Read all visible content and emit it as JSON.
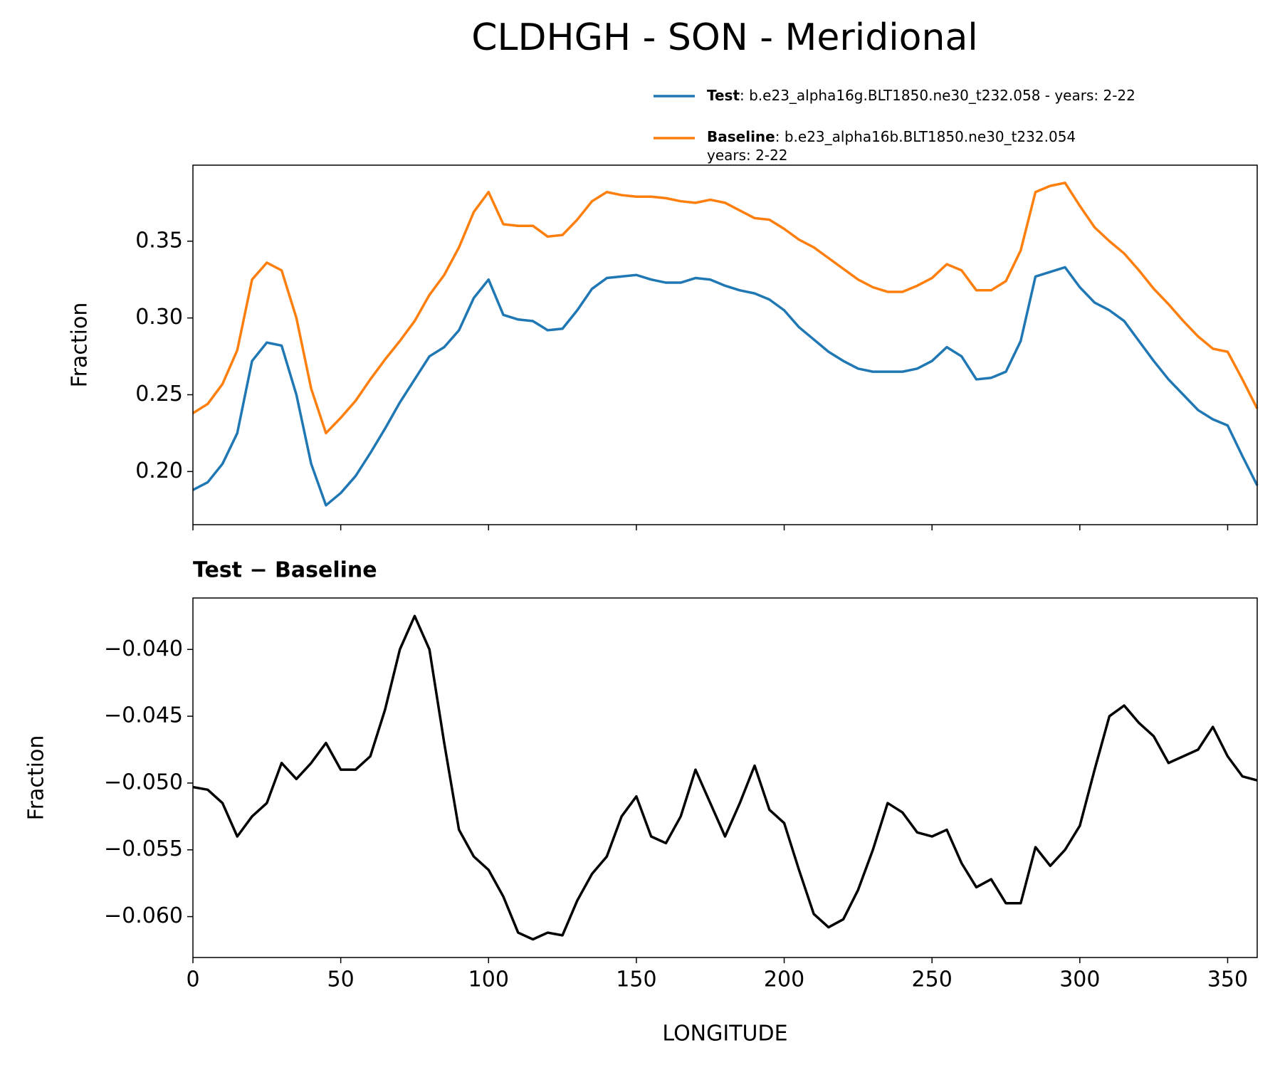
{
  "chart_data": [
    {
      "type": "line",
      "title": "CLDHGH - SON - Meridional",
      "ylabel": "Fraction",
      "x": [
        0,
        5,
        10,
        15,
        20,
        25,
        30,
        35,
        40,
        45,
        50,
        55,
        60,
        65,
        70,
        75,
        80,
        85,
        90,
        95,
        100,
        105,
        110,
        115,
        120,
        125,
        130,
        135,
        140,
        145,
        150,
        155,
        160,
        165,
        170,
        175,
        180,
        185,
        190,
        195,
        200,
        205,
        210,
        215,
        220,
        225,
        230,
        235,
        240,
        245,
        250,
        255,
        260,
        265,
        270,
        275,
        280,
        285,
        290,
        295,
        300,
        305,
        310,
        315,
        320,
        325,
        330,
        335,
        340,
        345,
        350,
        355,
        360
      ],
      "series": [
        {
          "name": "Test",
          "description": [
            ": b.e23_alpha16g.BLT1850.ne30_t232.058 - years: 2-22"
          ],
          "color": "#1f77b4",
          "values": [
            0.188,
            0.193,
            0.205,
            0.225,
            0.272,
            0.284,
            0.282,
            0.25,
            0.205,
            0.178,
            0.186,
            0.197,
            0.212,
            0.228,
            0.245,
            0.26,
            0.275,
            0.281,
            0.292,
            0.313,
            0.325,
            0.302,
            0.299,
            0.298,
            0.292,
            0.293,
            0.305,
            0.319,
            0.326,
            0.327,
            0.328,
            0.325,
            0.323,
            0.323,
            0.326,
            0.325,
            0.321,
            0.318,
            0.316,
            0.312,
            0.305,
            0.294,
            0.286,
            0.278,
            0.272,
            0.267,
            0.265,
            0.265,
            0.265,
            0.267,
            0.272,
            0.281,
            0.275,
            0.26,
            0.261,
            0.265,
            0.285,
            0.327,
            0.33,
            0.333,
            0.32,
            0.31,
            0.305,
            0.298,
            0.285,
            0.272,
            0.26,
            0.25,
            0.24,
            0.234,
            0.23,
            0.21,
            0.191
          ]
        },
        {
          "name": "Baseline",
          "description": [
            ": b.e23_alpha16b.BLT1850.ne30_t232.054",
            "years: 2-22"
          ],
          "color": "#ff7f0e",
          "values": [
            0.238,
            0.244,
            0.257,
            0.279,
            0.325,
            0.336,
            0.331,
            0.3,
            0.254,
            0.225,
            0.235,
            0.246,
            0.26,
            0.273,
            0.285,
            0.298,
            0.315,
            0.328,
            0.346,
            0.369,
            0.382,
            0.361,
            0.36,
            0.36,
            0.353,
            0.354,
            0.364,
            0.376,
            0.382,
            0.38,
            0.379,
            0.379,
            0.378,
            0.376,
            0.375,
            0.377,
            0.375,
            0.37,
            0.365,
            0.364,
            0.358,
            0.351,
            0.346,
            0.339,
            0.332,
            0.325,
            0.32,
            0.317,
            0.317,
            0.321,
            0.326,
            0.335,
            0.331,
            0.318,
            0.318,
            0.324,
            0.344,
            0.382,
            0.386,
            0.388,
            0.373,
            0.359,
            0.35,
            0.342,
            0.331,
            0.319,
            0.309,
            0.298,
            0.288,
            0.28,
            0.278,
            0.26,
            0.241
          ]
        }
      ],
      "xlim": [
        0,
        360
      ],
      "xticks": [
        0,
        50,
        100,
        150,
        200,
        250,
        300,
        350
      ],
      "show_xtick_labels": false,
      "ylim": [
        0.1654,
        0.3995
      ],
      "yticks": [
        {
          "value": 0.2,
          "label": "0.20"
        },
        0.25,
        {
          "value": 0.3,
          "label": "0.30"
        },
        0.35
      ]
    },
    {
      "type": "line",
      "title": "Test − Baseline",
      "ylabel": "Fraction",
      "xlabel": "LONGITUDE",
      "x": [
        0,
        5,
        10,
        15,
        20,
        25,
        30,
        35,
        40,
        45,
        50,
        55,
        60,
        65,
        70,
        75,
        80,
        85,
        90,
        95,
        100,
        105,
        110,
        115,
        120,
        125,
        130,
        135,
        140,
        145,
        150,
        155,
        160,
        165,
        170,
        175,
        180,
        185,
        190,
        195,
        200,
        205,
        210,
        215,
        220,
        225,
        230,
        235,
        240,
        245,
        250,
        255,
        260,
        265,
        270,
        275,
        280,
        285,
        290,
        295,
        300,
        305,
        310,
        315,
        320,
        325,
        330,
        335,
        340,
        345,
        350,
        355,
        360
      ],
      "series": [
        {
          "color": "#000000",
          "values": [
            -0.0503,
            -0.0505,
            -0.0515,
            -0.054,
            -0.0525,
            -0.0515,
            -0.0485,
            -0.0497,
            -0.0485,
            -0.047,
            -0.049,
            -0.049,
            -0.048,
            -0.0445,
            -0.04,
            -0.0375,
            -0.04,
            -0.047,
            -0.0535,
            -0.0555,
            -0.0565,
            -0.0585,
            -0.0612,
            -0.0617,
            -0.0612,
            -0.0614,
            -0.0588,
            -0.0568,
            -0.0555,
            -0.0525,
            -0.051,
            -0.054,
            -0.0545,
            -0.0525,
            -0.049,
            -0.0515,
            -0.054,
            -0.0515,
            -0.0487,
            -0.052,
            -0.053,
            -0.0565,
            -0.0598,
            -0.0608,
            -0.0602,
            -0.058,
            -0.055,
            -0.0515,
            -0.0522,
            -0.0537,
            -0.054,
            -0.0535,
            -0.056,
            -0.0578,
            -0.0572,
            -0.059,
            -0.059,
            -0.0548,
            -0.0562,
            -0.055,
            -0.0532,
            -0.049,
            -0.045,
            -0.0442,
            -0.0455,
            -0.0465,
            -0.0485,
            -0.048,
            -0.0475,
            -0.0458,
            -0.048,
            -0.0495,
            -0.0498
          ]
        }
      ],
      "xlim": [
        0,
        360
      ],
      "xticks": [
        0,
        50,
        100,
        150,
        200,
        250,
        300,
        350
      ],
      "show_xtick_labels": true,
      "ylim": [
        -0.06306,
        -0.03615
      ],
      "yticks": [
        {
          "value": -0.06,
          "label": "−0.060"
        },
        {
          "value": -0.055,
          "label": "−0.055"
        },
        {
          "value": -0.05,
          "label": "−0.050"
        },
        {
          "value": -0.045,
          "label": "−0.045"
        },
        {
          "value": -0.04,
          "label": "−0.040"
        }
      ]
    }
  ]
}
